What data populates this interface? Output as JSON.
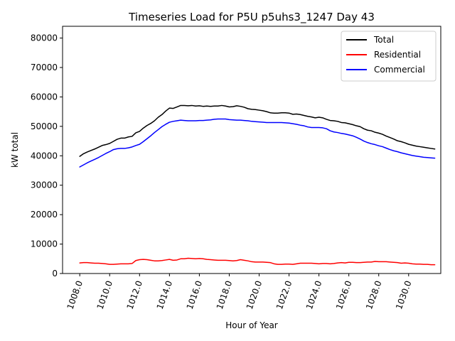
{
  "chart_data": {
    "type": "line",
    "title": "Timeseries Load for P5U p5uhs3_1247  Day 43",
    "xlabel": "Hour of Year",
    "ylabel": "kW total",
    "xlim": [
      1006.85,
      1032.15
    ],
    "ylim": [
      0,
      84000
    ],
    "xticks": [
      1008,
      1010,
      1012,
      1014,
      1016,
      1018,
      1020,
      1022,
      1024,
      1026,
      1028,
      1030
    ],
    "xtick_labels": [
      "1008.0",
      "1010.0",
      "1012.0",
      "1014.0",
      "1016.0",
      "1018.0",
      "1020.0",
      "1022.0",
      "1024.0",
      "1026.0",
      "1028.0",
      "1030.0"
    ],
    "yticks": [
      0,
      10000,
      20000,
      30000,
      40000,
      50000,
      60000,
      70000,
      80000
    ],
    "ytick_labels": [
      "0",
      "10000",
      "20000",
      "30000",
      "40000",
      "50000",
      "60000",
      "70000",
      "80000"
    ],
    "legend_position": "top-right",
    "x": [
      1008.0,
      1008.25,
      1008.5,
      1008.75,
      1009.0,
      1009.25,
      1009.5,
      1009.75,
      1010.0,
      1010.25,
      1010.5,
      1010.75,
      1011.0,
      1011.25,
      1011.5,
      1011.75,
      1012.0,
      1012.25,
      1012.5,
      1012.75,
      1013.0,
      1013.25,
      1013.5,
      1013.75,
      1014.0,
      1014.25,
      1014.5,
      1014.75,
      1015.0,
      1015.25,
      1015.5,
      1015.75,
      1016.0,
      1016.25,
      1016.5,
      1016.75,
      1017.0,
      1017.25,
      1017.5,
      1017.75,
      1018.0,
      1018.25,
      1018.5,
      1018.75,
      1019.0,
      1019.25,
      1019.5,
      1019.75,
      1020.0,
      1020.25,
      1020.5,
      1020.75,
      1021.0,
      1021.25,
      1021.5,
      1021.75,
      1022.0,
      1022.25,
      1022.5,
      1022.75,
      1023.0,
      1023.25,
      1023.5,
      1023.75,
      1024.0,
      1024.25,
      1024.5,
      1024.75,
      1025.0,
      1025.25,
      1025.5,
      1025.75,
      1026.0,
      1026.25,
      1026.5,
      1026.75,
      1027.0,
      1027.25,
      1027.5,
      1027.75,
      1028.0,
      1028.25,
      1028.5,
      1028.75,
      1029.0,
      1029.25,
      1029.5,
      1029.75,
      1030.0,
      1030.25,
      1030.5,
      1030.75,
      1031.0,
      1031.25,
      1031.5,
      1031.75
    ],
    "series": [
      {
        "name": "Total",
        "color": "#000000",
        "values": [
          39800,
          40700,
          41300,
          41800,
          42300,
          42900,
          43500,
          43800,
          44200,
          44900,
          45600,
          46000,
          46000,
          46400,
          46600,
          47800,
          48300,
          49400,
          50300,
          51000,
          51900,
          53100,
          54000,
          55200,
          56200,
          56100,
          56600,
          57100,
          57100,
          57000,
          57100,
          56900,
          57000,
          56800,
          56900,
          56800,
          56900,
          56900,
          57100,
          56900,
          56600,
          56700,
          57000,
          56800,
          56500,
          56000,
          55800,
          55700,
          55500,
          55300,
          55000,
          54600,
          54500,
          54500,
          54600,
          54600,
          54500,
          54100,
          54200,
          54000,
          53700,
          53400,
          53200,
          52900,
          53100,
          52900,
          52400,
          52000,
          51900,
          51700,
          51300,
          51200,
          50900,
          50600,
          50200,
          49900,
          49200,
          48700,
          48500,
          48000,
          47700,
          47300,
          46700,
          46200,
          45700,
          45100,
          44800,
          44400,
          43900,
          43600,
          43300,
          43100,
          42900,
          42700,
          42500,
          42300
        ]
      },
      {
        "name": "Residential",
        "color": "#ff0000",
        "values": [
          3600,
          3700,
          3700,
          3600,
          3500,
          3500,
          3400,
          3300,
          3100,
          3100,
          3200,
          3300,
          3300,
          3300,
          3400,
          4400,
          4700,
          4800,
          4700,
          4500,
          4300,
          4300,
          4400,
          4600,
          4800,
          4500,
          4600,
          5000,
          5000,
          5200,
          5100,
          5000,
          5100,
          5000,
          4800,
          4700,
          4600,
          4500,
          4500,
          4500,
          4400,
          4300,
          4400,
          4700,
          4500,
          4300,
          4000,
          3900,
          3900,
          3900,
          3800,
          3700,
          3300,
          3100,
          3100,
          3200,
          3200,
          3100,
          3300,
          3500,
          3500,
          3500,
          3500,
          3400,
          3300,
          3400,
          3400,
          3300,
          3400,
          3600,
          3700,
          3600,
          3800,
          3800,
          3700,
          3700,
          3800,
          3900,
          3900,
          4100,
          4000,
          4000,
          4000,
          3900,
          3800,
          3700,
          3500,
          3600,
          3500,
          3300,
          3200,
          3200,
          3100,
          3100,
          3000,
          3000
        ]
      },
      {
        "name": "Commercial",
        "color": "#0000ff",
        "values": [
          36200,
          36900,
          37600,
          38200,
          38800,
          39400,
          40100,
          40800,
          41400,
          42100,
          42400,
          42500,
          42500,
          42700,
          43000,
          43500,
          43900,
          44800,
          45800,
          46800,
          47900,
          48900,
          49900,
          50700,
          51400,
          51700,
          51900,
          52100,
          52000,
          51900,
          51900,
          51900,
          52000,
          52000,
          52100,
          52200,
          52400,
          52500,
          52500,
          52500,
          52300,
          52200,
          52100,
          52100,
          52000,
          51900,
          51700,
          51600,
          51500,
          51400,
          51300,
          51300,
          51300,
          51300,
          51300,
          51200,
          51100,
          50900,
          50700,
          50400,
          50200,
          49800,
          49600,
          49600,
          49600,
          49500,
          49200,
          48500,
          48100,
          47900,
          47600,
          47400,
          47100,
          46800,
          46300,
          45700,
          45000,
          44500,
          44100,
          43800,
          43400,
          43100,
          42600,
          42100,
          41700,
          41400,
          41000,
          40700,
          40400,
          40100,
          39900,
          39700,
          39500,
          39400,
          39300,
          39200
        ]
      }
    ]
  }
}
